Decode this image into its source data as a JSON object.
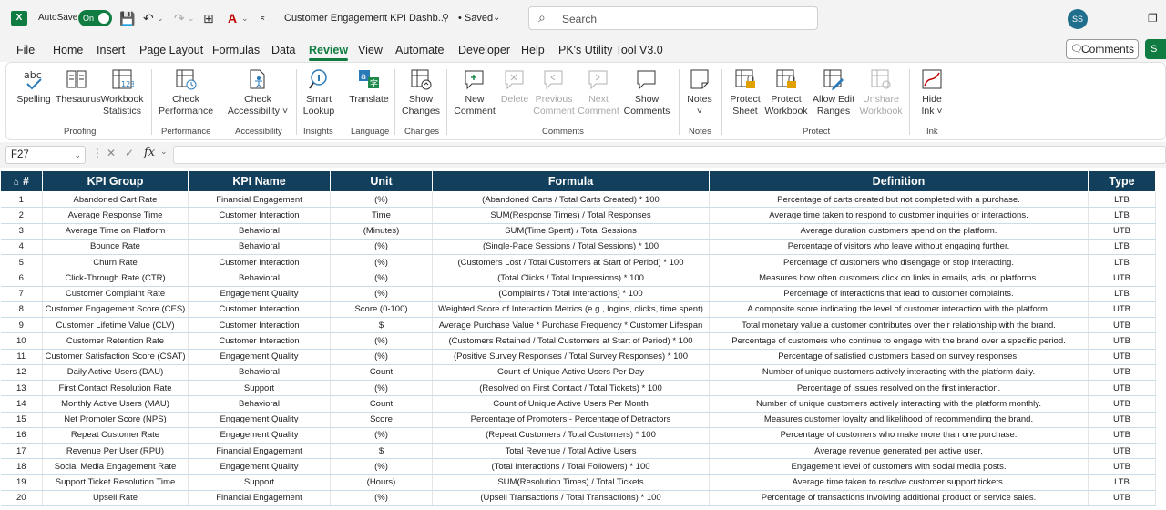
{
  "app": {
    "autosave_label": "AutoSave",
    "autosave_state": "On",
    "doc_title": "Customer Engagement KPI Dashb...",
    "saved_status": "• Saved",
    "search_placeholder": "Search",
    "user_initials": "SS",
    "accent_color": "#107c41",
    "header_color": "#123f5c"
  },
  "menu": {
    "tabs": [
      "File",
      "Home",
      "Insert",
      "Page Layout",
      "Formulas",
      "Data",
      "Review",
      "View",
      "Automate",
      "Developer",
      "Help",
      "PK's Utility Tool V3.0"
    ],
    "active_tab": "Review",
    "comments_button": "Comments",
    "share_button": "S"
  },
  "ribbon": {
    "buttons": {
      "spelling": "Spelling",
      "thesaurus": "Thesaurus",
      "workbook_statistics_1": "Workbook",
      "workbook_statistics_2": "Statistics",
      "check_performance_1": "Check",
      "check_performance_2": "Performance",
      "check_accessibility_1": "Check",
      "check_accessibility_2": "Accessibility ˅",
      "smart_lookup_1": "Smart",
      "smart_lookup_2": "Lookup",
      "translate": "Translate",
      "show_changes_1": "Show",
      "show_changes_2": "Changes",
      "new_comment_1": "New",
      "new_comment_2": "Comment",
      "delete": "Delete",
      "previous_comment_1": "Previous",
      "previous_comment_2": "Comment",
      "next_comment_1": "Next",
      "next_comment_2": "Comment",
      "show_comments_1": "Show",
      "show_comments_2": "Comments",
      "notes_1": "Notes",
      "notes_2": "˅",
      "protect_sheet_1": "Protect",
      "protect_sheet_2": "Sheet",
      "protect_workbook_1": "Protect",
      "protect_workbook_2": "Workbook",
      "allow_edit_ranges_1": "Allow Edit",
      "allow_edit_ranges_2": "Ranges",
      "unshare_workbook_1": "Unshare",
      "unshare_workbook_2": "Workbook",
      "hide_ink_1": "Hide",
      "hide_ink_2": "Ink ˅"
    },
    "groups": {
      "proofing": "Proofing",
      "performance": "Performance",
      "accessibility": "Accessibility",
      "insights": "Insights",
      "language": "Language",
      "changes": "Changes",
      "comments": "Comments",
      "notes": "Notes",
      "protect": "Protect",
      "ink": "Ink"
    }
  },
  "formula_bar": {
    "cell_ref": "F27",
    "formula": ""
  },
  "table": {
    "headers": [
      "#",
      "KPI Group",
      "KPI Name",
      "Unit",
      "Formula",
      "Definition",
      "Type"
    ],
    "rows": [
      [
        "1",
        "Abandoned Cart Rate",
        "Financial Engagement",
        "(%)",
        "(Abandoned Carts / Total Carts Created) * 100",
        "Percentage of carts created but not completed with a purchase.",
        "LTB"
      ],
      [
        "2",
        "Average Response Time",
        "Customer Interaction",
        "Time",
        "SUM(Response Times) / Total Responses",
        "Average time taken to respond to customer inquiries or interactions.",
        "LTB"
      ],
      [
        "3",
        "Average Time on Platform",
        "Behavioral",
        "(Minutes)",
        "SUM(Time Spent) / Total Sessions",
        "Average duration customers spend on the platform.",
        "UTB"
      ],
      [
        "4",
        "Bounce Rate",
        "Behavioral",
        "(%)",
        "(Single-Page Sessions / Total Sessions) * 100",
        "Percentage of visitors who leave without engaging further.",
        "LTB"
      ],
      [
        "5",
        "Churn Rate",
        "Customer Interaction",
        "(%)",
        "(Customers Lost / Total Customers at Start of Period) * 100",
        "Percentage of customers who disengage or stop interacting.",
        "LTB"
      ],
      [
        "6",
        "Click-Through Rate (CTR)",
        "Behavioral",
        "(%)",
        "(Total Clicks / Total Impressions) * 100",
        "Measures how often customers click on links in emails, ads, or platforms.",
        "UTB"
      ],
      [
        "7",
        "Customer Complaint Rate",
        "Engagement Quality",
        "(%)",
        "(Complaints / Total Interactions) * 100",
        "Percentage of interactions that lead to customer complaints.",
        "LTB"
      ],
      [
        "8",
        "Customer Engagement Score (CES)",
        "Customer Interaction",
        "Score (0-100)",
        "Weighted Score of Interaction Metrics (e.g., logins, clicks, time spent)",
        "A composite score indicating the level of customer interaction with the platform.",
        "UTB"
      ],
      [
        "9",
        "Customer Lifetime Value (CLV)",
        "Customer Interaction",
        "$",
        "Average Purchase Value * Purchase Frequency * Customer Lifespan",
        "Total monetary value a customer contributes over their relationship with the brand.",
        "UTB"
      ],
      [
        "10",
        "Customer Retention Rate",
        "Customer Interaction",
        "(%)",
        "(Customers Retained / Total Customers at Start of Period) * 100",
        "Percentage of customers who continue to engage with the brand over a specific period.",
        "UTB"
      ],
      [
        "11",
        "Customer Satisfaction Score (CSAT)",
        "Engagement Quality",
        "(%)",
        "(Positive Survey Responses / Total Survey Responses) * 100",
        "Percentage of satisfied customers based on survey responses.",
        "UTB"
      ],
      [
        "12",
        "Daily Active Users (DAU)",
        "Behavioral",
        "Count",
        "Count of Unique Active Users Per Day",
        "Number of unique customers actively interacting with the platform daily.",
        "UTB"
      ],
      [
        "13",
        "First Contact Resolution Rate",
        "Support",
        "(%)",
        "(Resolved on First Contact / Total Tickets) * 100",
        "Percentage of issues resolved on the first interaction.",
        "UTB"
      ],
      [
        "14",
        "Monthly Active Users (MAU)",
        "Behavioral",
        "Count",
        "Count of Unique Active Users Per Month",
        "Number of unique customers actively interacting with the platform monthly.",
        "UTB"
      ],
      [
        "15",
        "Net Promoter Score (NPS)",
        "Engagement Quality",
        "Score",
        "Percentage of Promoters - Percentage of Detractors",
        "Measures customer loyalty and likelihood of recommending the brand.",
        "UTB"
      ],
      [
        "16",
        "Repeat Customer Rate",
        "Engagement Quality",
        "(%)",
        "(Repeat Customers / Total Customers) * 100",
        "Percentage of customers who make more than one purchase.",
        "UTB"
      ],
      [
        "17",
        "Revenue Per User (RPU)",
        "Financial Engagement",
        "$",
        "Total Revenue / Total Active Users",
        "Average revenue generated per active user.",
        "UTB"
      ],
      [
        "18",
        "Social Media Engagement Rate",
        "Engagement Quality",
        "(%)",
        "(Total Interactions / Total Followers) * 100",
        "Engagement level of customers with social media posts.",
        "UTB"
      ],
      [
        "19",
        "Support Ticket Resolution Time",
        "Support",
        "(Hours)",
        "SUM(Resolution Times) / Total Tickets",
        "Average time taken to resolve customer support tickets.",
        "LTB"
      ],
      [
        "20",
        "Upsell Rate",
        "Financial Engagement",
        "(%)",
        "(Upsell Transactions / Total Transactions) * 100",
        "Percentage of transactions involving additional product or service sales.",
        "UTB"
      ]
    ]
  }
}
